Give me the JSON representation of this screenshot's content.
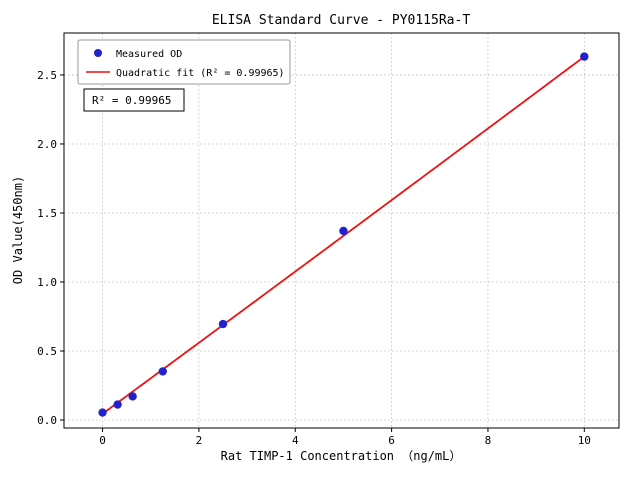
{
  "chart_data": {
    "type": "scatter",
    "title": "ELISA Standard Curve - PY0115Ra-T",
    "xlabel": "Rat TIMP-1 Concentration （ng/mL）",
    "ylabel": "OD Value(450nm)",
    "xlim": [
      -0.8,
      10.72
    ],
    "ylim": [
      -0.058,
      2.804
    ],
    "xtick_values": [
      0,
      2,
      4,
      6,
      8,
      10
    ],
    "xtick_labels": [
      "0",
      "2",
      "4",
      "6",
      "8",
      "10"
    ],
    "ytick_values": [
      0,
      0.5,
      1.0,
      1.5,
      2.0,
      2.5
    ],
    "ytick_labels": [
      "0.0",
      "0.5",
      "1.0",
      "1.5",
      "2.0",
      "2.5"
    ],
    "grid": true,
    "legend": {
      "position": "upper-left",
      "entries": [
        {
          "marker": "point",
          "label": "Measured OD"
        },
        {
          "marker": "line",
          "label": "Quadratic fit (R² = 0.99965)"
        }
      ]
    },
    "annotation": "R² = 0.99965",
    "series": [
      {
        "name": "Measured OD",
        "type": "scatter",
        "x": [
          0,
          0.313,
          0.625,
          1.25,
          2.5,
          5,
          10
        ],
        "y": [
          0.054,
          0.112,
          0.171,
          0.352,
          0.695,
          1.37,
          2.633
        ]
      },
      {
        "name": "Quadratic fit",
        "type": "line",
        "fit_coefficients": {
          "c0": 0.045,
          "c1": 0.2568,
          "c2": 0.0002
        },
        "x_range": [
          0,
          10
        ]
      }
    ],
    "colors": {
      "point": "#2222cc",
      "line": "#ee1111",
      "grid": "#bbbbbb",
      "axis": "#000000",
      "text": "#000000"
    }
  }
}
